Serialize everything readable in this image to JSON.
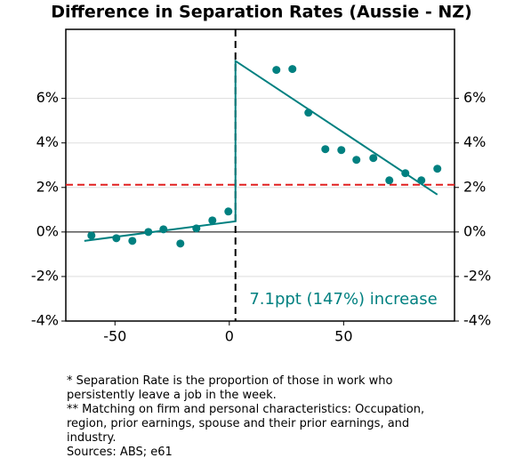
{
  "chart_data": {
    "type": "scatter",
    "title": "Difference in Separation Rates (Aussie - NZ)",
    "color": "#008080",
    "series": [
      {
        "color": "#008080",
        "x": [
          -60.3,
          -49.4,
          -42.4,
          -35.4,
          -28.8,
          -21.4,
          -14.4,
          -7.4,
          -0.4,
          20.6,
          27.6,
          34.6,
          42,
          49,
          55.6,
          63,
          70,
          77,
          84,
          91
        ],
        "values": [
          -0.16,
          -0.28,
          -0.4,
          0.0,
          0.12,
          -0.52,
          0.16,
          0.52,
          0.92,
          7.28,
          7.32,
          5.36,
          3.72,
          3.68,
          3.24,
          3.32,
          2.32,
          2.64,
          2.32,
          2.84
        ]
      }
    ],
    "fit_lines": [
      {
        "color": "#008080",
        "x": [
          -63.4,
          2.7,
          2.7,
          91
        ],
        "values": [
          -0.4,
          0.48,
          7.68,
          1.68
        ]
      }
    ],
    "hline": {
      "value": 2.12,
      "color": "#e02020"
    },
    "vline": {
      "value": 2.7
    },
    "annotation": "7.1ppt (147%) increase",
    "xlim": [
      -71.5,
      98.5
    ],
    "ylim": [
      -4,
      9.1
    ],
    "xticks": [
      -50,
      0,
      50
    ],
    "yticks": [
      {
        "value": -4,
        "label": "-4%"
      },
      {
        "value": -2,
        "label": "-2%"
      },
      {
        "value": 0,
        "label": "0%"
      },
      {
        "value": 2,
        "label": "2%"
      },
      {
        "value": 4,
        "label": "4%"
      },
      {
        "value": 6,
        "label": "6%"
      }
    ],
    "grid": true,
    "footnotes": [
      "* Separation Rate is the proportion of those in work who",
      "persistently leave a job in the week.",
      "** Matching on firm and personal characteristics: Occupation,",
      "region, prior earnings, spouse and their prior earnings, and",
      "industry.",
      "Sources: ABS; e61"
    ]
  }
}
